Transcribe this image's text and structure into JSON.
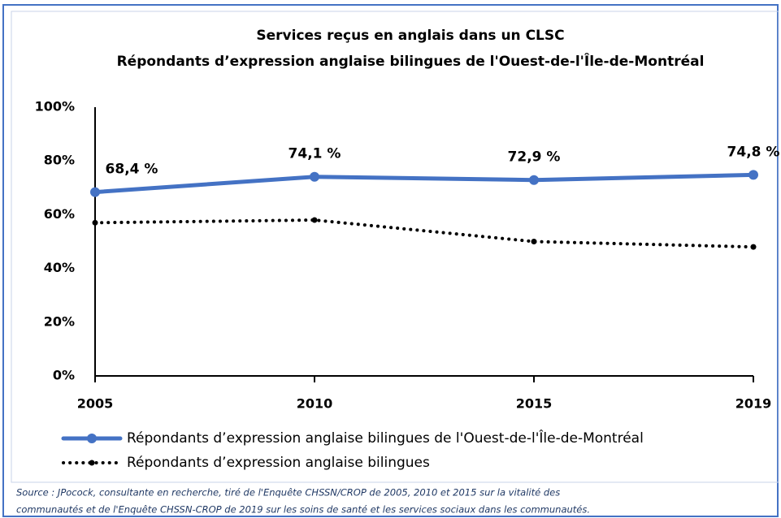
{
  "chart_data": {
    "type": "line",
    "title": "Services reçus en anglais  dans un CLSC",
    "subtitle": "Répondants  d’expression anglaise bilingues de l'Ouest-de-l'Île-de-Montréal",
    "categories": [
      "2005",
      "2010",
      "2015",
      "2019"
    ],
    "series": [
      {
        "name": "Répondants d’expression anglaise bilingues de l'Ouest-de-l'Île-de-Montréal",
        "color": "#4472c4",
        "values": [
          68.4,
          74.1,
          72.9,
          74.8
        ],
        "value_labels": [
          "68,4 %",
          "74,1 %",
          "72,9 %",
          "74,8 %"
        ]
      },
      {
        "name": "Répondants d’expression anglaise bilingues",
        "color": "#000000",
        "values": [
          57,
          58,
          50,
          48
        ]
      }
    ],
    "ylim": [
      0,
      100
    ],
    "yticks": [
      {
        "value": 0,
        "label": "0%"
      },
      {
        "value": 20,
        "label": "20%"
      },
      {
        "value": 40,
        "label": "40%"
      },
      {
        "value": 60,
        "label": "60%"
      },
      {
        "value": 80,
        "label": "80%"
      },
      {
        "value": 100,
        "label": "100%"
      }
    ],
    "grid": false,
    "legend": "bottom",
    "source": [
      "Source : JPocock, consultante en recherche, tiré de l'Enquête CHSSN/CROP de 2005, 2010 et 2015 sur la vitalité des",
      "communautés et de l'Enquête CHSSN-CROP de 2019 sur les soins de santé et les services sociaux dans les communautés."
    ]
  }
}
